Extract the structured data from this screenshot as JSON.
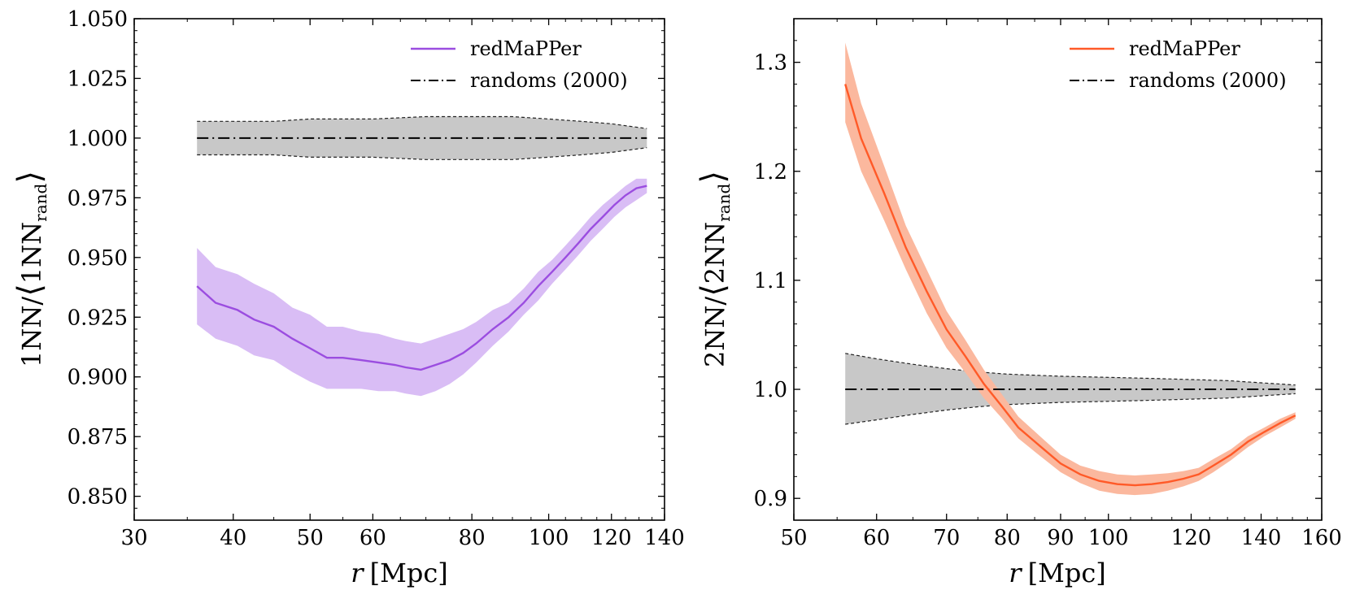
{
  "chart_data": [
    {
      "type": "line",
      "panel": "left",
      "xscale": "log",
      "xlim": [
        30,
        140
      ],
      "ylim": [
        0.84,
        1.05
      ],
      "xticks": [
        30,
        40,
        50,
        60,
        80,
        100,
        120,
        140
      ],
      "yticks": [
        0.85,
        0.875,
        0.9,
        0.925,
        0.95,
        0.975,
        1.0,
        1.025,
        1.05
      ],
      "xtick_labels": [
        "30",
        "40",
        "50",
        "60",
        "80",
        "100",
        "120",
        "140"
      ],
      "ytick_labels": [
        "0.850",
        "0.875",
        "0.900",
        "0.925",
        "0.950",
        "0.975",
        "1.000",
        "1.025",
        "1.050"
      ],
      "xlabel": "r [Mpc]",
      "xlabel_var": "r",
      "xlabel_unit": "[Mpc]",
      "ylabel": "1NN/⟨1NN_rand⟩",
      "ylabel_parts": {
        "num": "1NN/",
        "lang": "⟨",
        "main": "1NN",
        "sub": "rand",
        "rang": "⟩"
      },
      "legend": {
        "position": "top-right",
        "entries": [
          "redMaPPer",
          "randoms (2000)"
        ]
      },
      "series": [
        {
          "name": "redMaPPer",
          "color": "#9b4de0",
          "band_color": "#d9bdf5",
          "x": [
            36,
            38,
            40.5,
            42.5,
            45,
            47.5,
            50,
            52.5,
            55,
            58,
            61,
            64,
            66,
            69,
            72,
            75,
            78,
            81,
            85,
            89,
            93,
            97,
            101,
            105,
            109,
            113,
            117,
            121,
            125,
            129,
            133
          ],
          "y": [
            0.938,
            0.931,
            0.928,
            0.924,
            0.921,
            0.916,
            0.912,
            0.908,
            0.908,
            0.907,
            0.906,
            0.905,
            0.904,
            0.903,
            0.905,
            0.907,
            0.91,
            0.914,
            0.92,
            0.925,
            0.931,
            0.938,
            0.944,
            0.95,
            0.956,
            0.962,
            0.967,
            0.972,
            0.976,
            0.979,
            0.98
          ],
          "lower": [
            0.922,
            0.916,
            0.913,
            0.909,
            0.907,
            0.902,
            0.898,
            0.895,
            0.895,
            0.895,
            0.894,
            0.894,
            0.893,
            0.892,
            0.894,
            0.897,
            0.901,
            0.906,
            0.913,
            0.919,
            0.926,
            0.932,
            0.939,
            0.945,
            0.951,
            0.957,
            0.962,
            0.967,
            0.971,
            0.974,
            0.977
          ],
          "upper": [
            0.954,
            0.946,
            0.943,
            0.939,
            0.935,
            0.929,
            0.926,
            0.921,
            0.921,
            0.919,
            0.918,
            0.916,
            0.915,
            0.914,
            0.916,
            0.918,
            0.92,
            0.923,
            0.928,
            0.931,
            0.937,
            0.944,
            0.949,
            0.955,
            0.961,
            0.967,
            0.972,
            0.976,
            0.98,
            0.983,
            0.983
          ]
        },
        {
          "name": "randoms (2000)",
          "color": "#000000",
          "band_color": "#c8c8c8",
          "x": [
            36,
            40,
            45,
            50,
            55,
            60,
            70,
            80,
            90,
            100,
            110,
            120,
            133
          ],
          "y": [
            1.0,
            1.0,
            1.0,
            1.0,
            1.0,
            1.0,
            1.0,
            1.0,
            1.0,
            1.0,
            1.0,
            1.0,
            1.0
          ],
          "lower": [
            0.993,
            0.993,
            0.993,
            0.992,
            0.992,
            0.992,
            0.991,
            0.991,
            0.991,
            0.992,
            0.993,
            0.994,
            0.996
          ],
          "upper": [
            1.007,
            1.007,
            1.007,
            1.008,
            1.008,
            1.008,
            1.009,
            1.009,
            1.009,
            1.008,
            1.007,
            1.006,
            1.004
          ]
        }
      ]
    },
    {
      "type": "line",
      "panel": "right",
      "xscale": "log",
      "xlim": [
        50,
        160
      ],
      "ylim": [
        0.88,
        1.34
      ],
      "xticks": [
        50,
        60,
        70,
        80,
        90,
        100,
        120,
        140,
        160
      ],
      "yticks": [
        0.9,
        1.0,
        1.1,
        1.2,
        1.3
      ],
      "xtick_labels": [
        "50",
        "60",
        "70",
        "80",
        "90",
        "100",
        "120",
        "140",
        "160"
      ],
      "ytick_labels": [
        "0.9",
        "1.0",
        "1.1",
        "1.2",
        "1.3"
      ],
      "xlabel": "r [Mpc]",
      "xlabel_var": "r",
      "xlabel_unit": "[Mpc]",
      "ylabel": "2NN/⟨2NN_rand⟩",
      "ylabel_parts": {
        "num": "2NN/",
        "lang": "⟨",
        "main": "2NN",
        "sub": "rand",
        "rang": "⟩"
      },
      "legend": {
        "position": "top-right",
        "entries": [
          "redMaPPer",
          "randoms (2000)"
        ]
      },
      "series": [
        {
          "name": "redMaPPer",
          "color": "#ff5a28",
          "band_color": "#fbb89e",
          "x": [
            56,
            58,
            61,
            64,
            67,
            70,
            73,
            76,
            79,
            82,
            86,
            90,
            94,
            98,
            102,
            106,
            110,
            114,
            118,
            122,
            126,
            131,
            136,
            141,
            146,
            151
          ],
          "y": [
            1.28,
            1.23,
            1.18,
            1.13,
            1.09,
            1.055,
            1.03,
            1.005,
            0.985,
            0.965,
            0.948,
            0.932,
            0.922,
            0.916,
            0.913,
            0.912,
            0.913,
            0.915,
            0.918,
            0.922,
            0.93,
            0.94,
            0.952,
            0.961,
            0.969,
            0.976
          ],
          "lower": [
            1.245,
            1.2,
            1.155,
            1.11,
            1.07,
            1.038,
            1.015,
            0.992,
            0.974,
            0.955,
            0.939,
            0.924,
            0.914,
            0.907,
            0.904,
            0.903,
            0.904,
            0.907,
            0.911,
            0.916,
            0.924,
            0.935,
            0.947,
            0.957,
            0.965,
            0.973
          ],
          "upper": [
            1.318,
            1.262,
            1.205,
            1.15,
            1.11,
            1.072,
            1.045,
            1.018,
            0.996,
            0.975,
            0.957,
            0.94,
            0.93,
            0.925,
            0.922,
            0.921,
            0.922,
            0.923,
            0.925,
            0.928,
            0.936,
            0.945,
            0.957,
            0.965,
            0.973,
            0.979
          ]
        },
        {
          "name": "randoms (2000)",
          "color": "#000000",
          "band_color": "#c8c8c8",
          "x": [
            56,
            60,
            65,
            70,
            75,
            80,
            90,
            100,
            110,
            120,
            130,
            140,
            151
          ],
          "y": [
            1.0,
            1.0,
            1.0,
            1.0,
            1.0,
            1.0,
            1.0,
            1.0,
            1.0,
            1.0,
            1.0,
            1.0,
            1.0
          ],
          "lower": [
            0.968,
            0.972,
            0.977,
            0.981,
            0.984,
            0.986,
            0.988,
            0.989,
            0.99,
            0.991,
            0.992,
            0.994,
            0.996
          ],
          "upper": [
            1.033,
            1.028,
            1.023,
            1.019,
            1.016,
            1.014,
            1.012,
            1.011,
            1.01,
            1.009,
            1.008,
            1.006,
            1.004
          ]
        }
      ]
    }
  ]
}
